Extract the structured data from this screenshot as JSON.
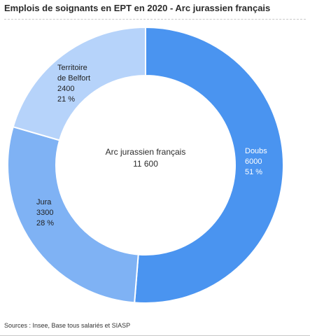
{
  "title": "Emplois de soignants en EPT en 2020 - Arc jurassien français",
  "source": "Sources : Insee, Base tous salariés et SIASP",
  "chart_data": {
    "type": "pie",
    "donut": true,
    "title": "Emplois de soignants en EPT en 2020 - Arc jurassien français",
    "center_label": {
      "name": "Arc jurassien français",
      "total": "11 600"
    },
    "slices": [
      {
        "label": "Doubs",
        "value": 6000,
        "percent": 51,
        "value_text": "6000",
        "percent_text": "51 %",
        "color": "#4a94f0"
      },
      {
        "label": "Jura",
        "value": 3300,
        "percent": 28,
        "value_text": "3300",
        "percent_text": "28 %",
        "color": "#7fb2f4"
      },
      {
        "label": "Territoire de Belfort",
        "label_lines": [
          "Territoire",
          "de Belfort"
        ],
        "value": 2400,
        "percent": 21,
        "value_text": "2400",
        "percent_text": "21 %",
        "color": "#b6d3fa"
      }
    ]
  }
}
